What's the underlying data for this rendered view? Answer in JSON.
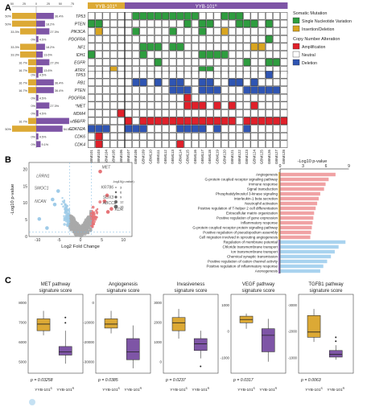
{
  "panels": {
    "A": "A",
    "B": "B",
    "C": "C"
  },
  "colors": {
    "snv": "#2e9d3f",
    "indel": "#d9a520",
    "amp": "#e0202a",
    "del": "#2f55b3",
    "neutral": "#ffffff",
    "purple": "#7e55a6",
    "gold": "#dca935",
    "volcano_grey": "#a9a9a9",
    "volcano_red": "#e67377",
    "volcano_blue": "#9fcbe8",
    "bar_red": "#f0a2a4",
    "bar_blue": "#a9d3ef"
  },
  "panelA": {
    "group_low": "YYB-101",
    "group_low_sup": "S",
    "group_high": "YYB-101",
    "group_high_sup": "R",
    "axis_ticks": [
      "50",
      "25",
      "0",
      "25",
      "50",
      "75"
    ],
    "genes_top": [
      "TP53",
      "PTEN",
      "PIK3CA",
      "PDGFRA",
      "NF1",
      "IDH1",
      "EGFR",
      "ATRX"
    ],
    "genes_bottom": [
      "TP53",
      "RB1",
      "PTEN",
      "PDGFRA",
      "*MET",
      "MDM4",
      "*EGFR",
      "CDKN2A",
      "CDK6",
      "CDK4"
    ],
    "pct_top": [
      {
        "left": "50%",
        "right": "36.4%",
        "lv": 0.5,
        "rv": 0.364
      },
      {
        "left": "50%",
        "right": "18.2%",
        "lv": 0.5,
        "rv": 0.182
      },
      {
        "left": "33.3%",
        "right": "27.3%",
        "lv": 0.333,
        "rv": 0.273
      },
      {
        "left": "0%",
        "right": "4.5%",
        "lv": 0,
        "rv": 0.045
      },
      {
        "left": "33.3%",
        "right": "18.2%",
        "lv": 0.333,
        "rv": 0.182
      },
      {
        "left": "33.3%",
        "right": "13.6%",
        "lv": 0.333,
        "rv": 0.136
      },
      {
        "left": "16.7%",
        "right": "27.3%",
        "lv": 0.167,
        "rv": 0.273
      },
      {
        "left": "16.7%",
        "right": "13.6%",
        "lv": 0.167,
        "rv": 0.136
      }
    ],
    "pct_bottom": [
      {
        "left": "0%",
        "right": "4.5%",
        "lv": 0,
        "rv": 0.045
      },
      {
        "left": "16.7%",
        "right": "36.4%",
        "lv": 0.167,
        "rv": 0.364
      },
      {
        "left": "16.7%",
        "right": "36.4%",
        "lv": 0.167,
        "rv": 0.364
      },
      {
        "left": "0%",
        "right": "4.5%",
        "lv": 0,
        "rv": 0.045
      },
      {
        "left": "0%",
        "right": "27.3%",
        "lv": 0,
        "rv": 0.273
      },
      {
        "left": "0%",
        "right": "4.5%",
        "lv": 0,
        "rv": 0.045
      },
      {
        "left": "16.7%",
        "right": "68.2%",
        "lv": 0.167,
        "rv": 0.682
      },
      {
        "left": "50%",
        "right": "54.5%",
        "lv": 0.5,
        "rv": 0.545
      },
      {
        "left": "0%",
        "right": "4.5%",
        "lv": 0,
        "rv": 0.045
      },
      {
        "left": "0%",
        "right": "9.1%",
        "lv": 0,
        "rv": 0.091
      }
    ],
    "samples": [
      "GBM101",
      "GBM103",
      "GBM104",
      "GBM105",
      "GBM106",
      "GBM107",
      "GBM108",
      "GBM109",
      "GBM110",
      "GBM111",
      "GBM112",
      "GBM113",
      "GBM114",
      "GBM115",
      "GBM116",
      "GBM117",
      "GBM118",
      "GBM119",
      "GBM120",
      "GBM121",
      "GBM122",
      "GBM123",
      "GBM124",
      "GBM125",
      "GBM126",
      "GBM127",
      "GBM128"
    ],
    "mut_matrix": [
      "......GGGGGGGGG...GGG......",
      "GG...........G.GG...GGG.G..",
      ".Y....G....G...G..Y........",
      "........................G..",
      ".......GGG.GG.........YY...",
      "G......G.......GGGG........",
      ".........G...........G..GG.",
      "...Y...........GG.........."
    ],
    "cna_matrix": [
      "........................B..",
      "......BB.B.BB..BB..BB.B....",
      "...........BBB.BBB...BBBBB.",
      ".............R.............",
      ".............RRR.R.R..R....",
      "....R......................",
      ".....R.RRRRRRRRRRRRR.RRRRRR",
      "BBB..BBB....BBBB.B...B.....",
      ".R.........................",
      ".R..........R.............."
    ],
    "legend": {
      "somatic_title": "Somatic Mutation",
      "snv": "Single Nucleotide Variation",
      "indel": "Insertion/Deletion",
      "cna_title": "Copy Number Alteration",
      "amp": "Amplification",
      "neutral": "Neutral",
      "del": "Deletion"
    }
  },
  "panelB": {
    "xlabel": "Log2 Fold Change",
    "ylabel": "-Log10 p-value",
    "xticks": [
      "-10",
      "-5",
      "0",
      "5",
      "10"
    ],
    "yticks": [
      "0",
      "5",
      "10",
      "15",
      "20"
    ],
    "legend_title": "-log10(p.value)",
    "legend_values": [
      "3",
      "6",
      "9",
      "12",
      "15"
    ],
    "gene_labels": [
      "MET",
      "LRRN1",
      "SMOC1",
      "NCAN",
      "KRT86",
      "SOX3",
      "ABCC2",
      "KDR"
    ],
    "bar_axis_title": "-Log10 p-value",
    "bar_ticks": [
      "0",
      "3",
      "6",
      "9"
    ],
    "pathways_up": [
      {
        "name": "Angiogenesis",
        "v": 7.2
      },
      {
        "name": "G-protein coupled receptor signaling pathway",
        "v": 6.3
      },
      {
        "name": "Immune response",
        "v": 5.9
      },
      {
        "name": "Signal transduction",
        "v": 5.7
      },
      {
        "name": "Phosphatidylinositol 3-kinase signaling",
        "v": 5.2
      },
      {
        "name": "Interleukin-1 beta secretion",
        "v": 5.0
      },
      {
        "name": "Neutrophil activation",
        "v": 4.8
      },
      {
        "name": "Positive regulation of T-helper 2 cell differentiation",
        "v": 4.6
      },
      {
        "name": "Extracellular matrix organization",
        "v": 4.4
      },
      {
        "name": "Positive regulation of gene expression",
        "v": 4.3
      },
      {
        "name": "Inflammatory response",
        "v": 4.2
      },
      {
        "name": "G-protein coupled receptor protein signaling pathway",
        "v": 4.1
      },
      {
        "name": "Positive regulation of pseudopodium assembly",
        "v": 4.0
      },
      {
        "name": "Cell migration involved in sprouting angiogenesis",
        "v": 3.9
      }
    ],
    "pathways_down": [
      {
        "name": "Regulation of membrane potential",
        "v": 8.5
      },
      {
        "name": "Chloride transmembrane transport",
        "v": 7.6
      },
      {
        "name": "Ion transmembrane transport",
        "v": 7.1
      },
      {
        "name": "Chemical synaptic transmission",
        "v": 6.6
      },
      {
        "name": "Positive regulation of cation channel activity",
        "v": 6.1
      },
      {
        "name": "Positive regulation of inflammatory response",
        "v": 5.6
      },
      {
        "name": "Axonogenesis",
        "v": 5.2
      }
    ]
  },
  "panelC": {
    "yticks_1": [
      "5000",
      "6000",
      "7000",
      "8000"
    ],
    "yticks_2": [
      "-30000",
      "-20000",
      "-10000",
      "0"
    ],
    "yticks_3": [
      "0",
      "1000",
      "2000",
      "3000"
    ],
    "yticks_4": [
      "-1000",
      "0",
      "1000"
    ],
    "yticks_5": [
      "-1000",
      "-2000",
      "-3000"
    ],
    "xcat_s": "YYB-101",
    "xcat_s_sup": "S",
    "xcat_r": "YYB-101",
    "xcat_r_sup": "R",
    "panels": [
      {
        "title1": "MET pathway",
        "title2": "signature score",
        "p": "p = 0.03258"
      },
      {
        "title1": "Angiogenesis",
        "title2": "signature score",
        "p": "p = 0.0385"
      },
      {
        "title1": "Invasiveness",
        "title2": "signature score",
        "p": "p = 0.0237"
      },
      {
        "title1": "VEGF pathway",
        "title2": "signature score",
        "p": "p = 0.0317"
      },
      {
        "title1": "TGFB1 pathway",
        "title2": "signature score",
        "p": "p = 0.0063"
      }
    ]
  }
}
